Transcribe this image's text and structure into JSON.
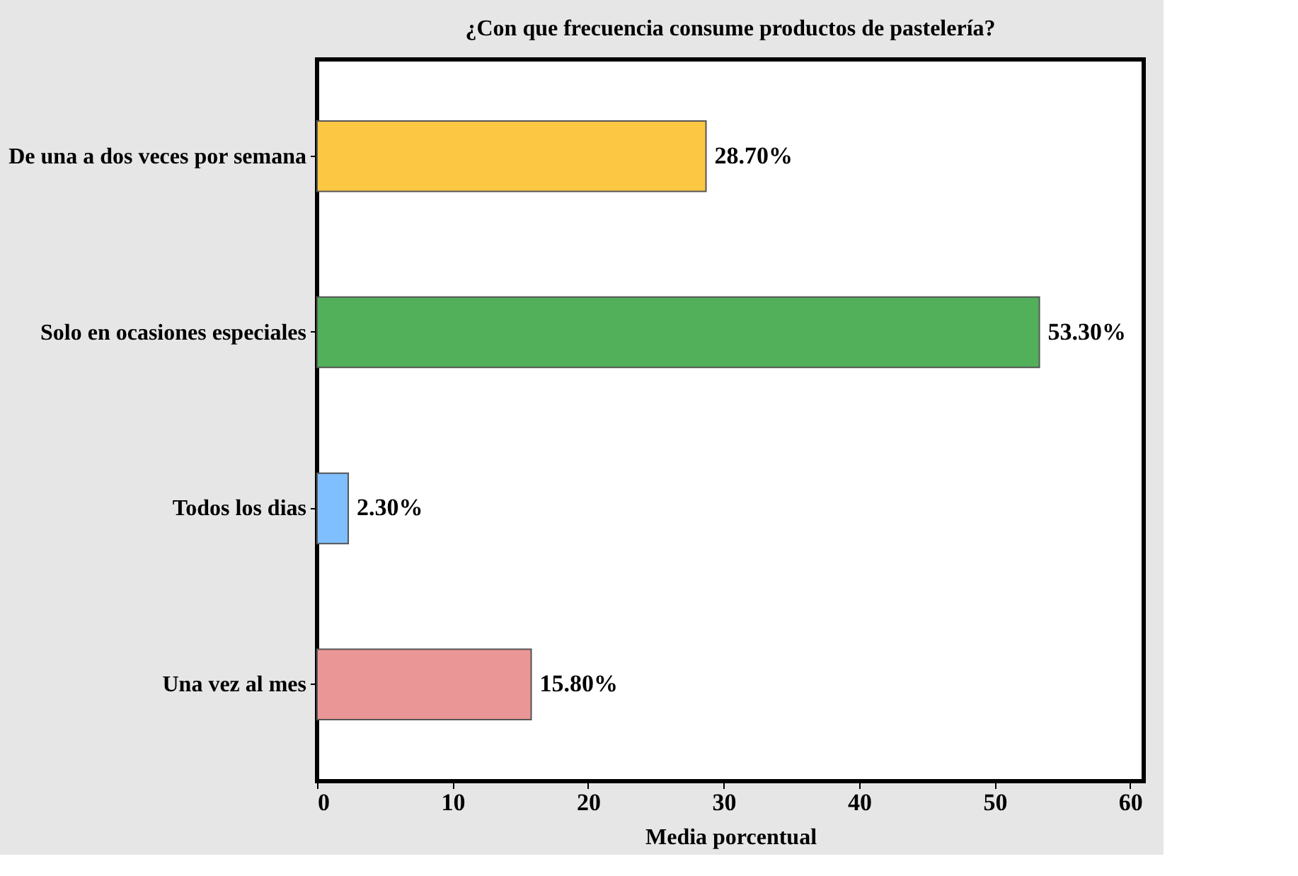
{
  "chart_data": {
    "type": "bar",
    "orientation": "horizontal",
    "title": "¿Con que frecuencia consume productos de pastelería?",
    "xlabel": "Media porcentual",
    "categories": [
      "De una a dos veces por semana",
      "Solo en ocasiones especiales",
      "Todos los dias",
      "Una vez al mes"
    ],
    "values": [
      28.7,
      53.3,
      2.3,
      15.8
    ],
    "colors": [
      "#fcc844",
      "#52b05a",
      "#80bfff",
      "#ea9696"
    ],
    "value_labels": [
      "28.70%",
      "53.30%",
      "2.30%",
      "15.80%"
    ],
    "xlim": [
      0,
      61
    ],
    "xticks": [
      0,
      10,
      20,
      30,
      40,
      50,
      60
    ],
    "grid": false
  }
}
